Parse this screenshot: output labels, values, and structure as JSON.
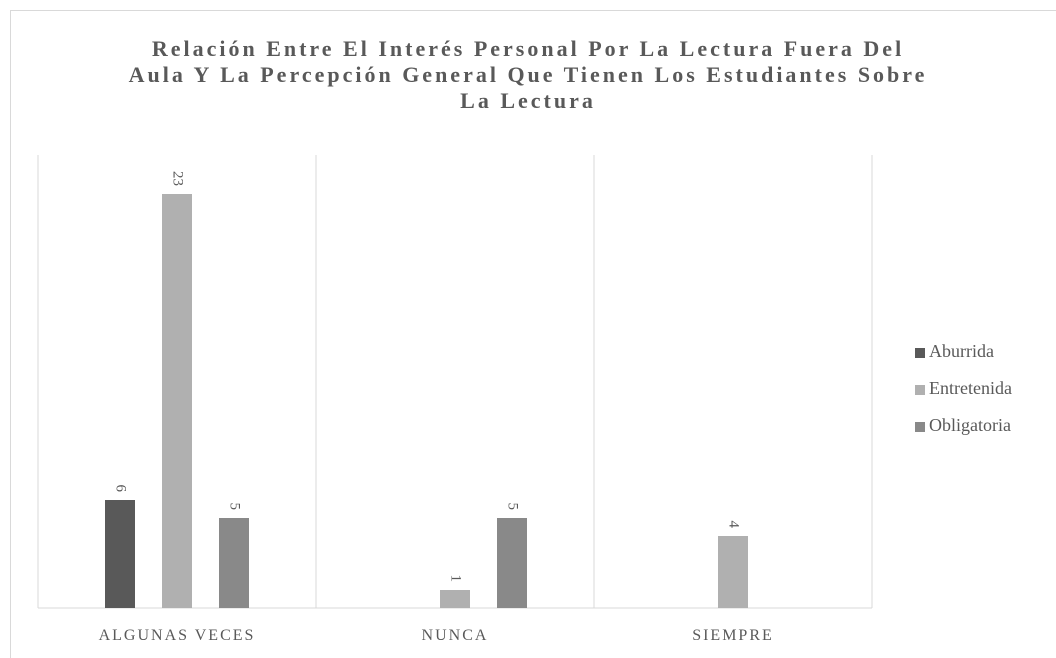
{
  "chart_data": {
    "type": "bar",
    "title": "Relación Entre El Interés Personal Por La Lectura Fuera Del Aula Y La Percepción General Que Tienen Los Estudiantes Sobre La Lectura",
    "categories": [
      "ALGUNAS VECES",
      "NUNCA",
      "SIEMPRE"
    ],
    "series": [
      {
        "name": "Aburrida",
        "color": "#595959",
        "values": [
          6,
          null,
          null
        ]
      },
      {
        "name": "Entretenida",
        "color": "#b0b0b0",
        "values": [
          23,
          1,
          4
        ]
      },
      {
        "name": "Obligatoria",
        "color": "#898989",
        "values": [
          5,
          5,
          null
        ]
      }
    ],
    "ylim": [
      0,
      25
    ],
    "legend": "right"
  }
}
